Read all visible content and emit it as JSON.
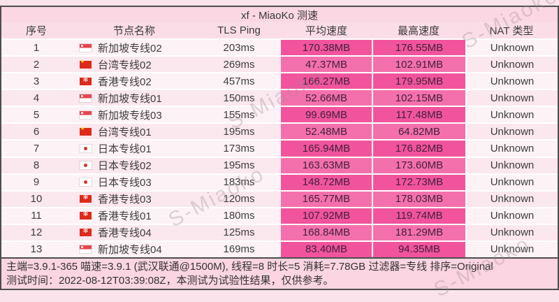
{
  "title": "xf - MiaoKo 测速",
  "watermark": "S-Miaoko",
  "columns": {
    "index": "序号",
    "name": "节点名称",
    "ping": "TLS Ping",
    "avg": "平均速度",
    "max": "最高速度",
    "nat": "NAT 类型"
  },
  "rows": [
    {
      "index": "1",
      "flag": "sg",
      "name": "新加坡专线02",
      "ping": "203ms",
      "avg": "170.38MB",
      "max": "176.55MB",
      "nat": "Unknown"
    },
    {
      "index": "2",
      "flag": "cn",
      "name": "台湾专线02",
      "ping": "269ms",
      "avg": "47.37MB",
      "max": "102.91MB",
      "nat": "Unknown"
    },
    {
      "index": "3",
      "flag": "hk",
      "name": "香港专线02",
      "ping": "457ms",
      "avg": "166.27MB",
      "max": "179.95MB",
      "nat": "Unknown"
    },
    {
      "index": "4",
      "flag": "sg",
      "name": "新加坡专线01",
      "ping": "150ms",
      "avg": "52.66MB",
      "max": "102.15MB",
      "nat": "Unknown"
    },
    {
      "index": "5",
      "flag": "sg",
      "name": "新加坡专线03",
      "ping": "155ms",
      "avg": "99.69MB",
      "max": "117.48MB",
      "nat": "Unknown"
    },
    {
      "index": "6",
      "flag": "cn",
      "name": "台湾专线01",
      "ping": "195ms",
      "avg": "52.48MB",
      "max": "64.82MB",
      "nat": "Unknown"
    },
    {
      "index": "7",
      "flag": "jp",
      "name": "日本专线01",
      "ping": "173ms",
      "avg": "165.94MB",
      "max": "176.82MB",
      "nat": "Unknown"
    },
    {
      "index": "8",
      "flag": "jp",
      "name": "日本专线02",
      "ping": "195ms",
      "avg": "163.63MB",
      "max": "173.60MB",
      "nat": "Unknown"
    },
    {
      "index": "9",
      "flag": "jp",
      "name": "日本专线03",
      "ping": "183ms",
      "avg": "148.72MB",
      "max": "172.73MB",
      "nat": "Unknown"
    },
    {
      "index": "10",
      "flag": "hk",
      "name": "香港专线03",
      "ping": "120ms",
      "avg": "165.77MB",
      "max": "178.03MB",
      "nat": "Unknown"
    },
    {
      "index": "11",
      "flag": "hk",
      "name": "香港专线01",
      "ping": "180ms",
      "avg": "107.92MB",
      "max": "119.74MB",
      "nat": "Unknown"
    },
    {
      "index": "12",
      "flag": "hk",
      "name": "香港专线04",
      "ping": "125ms",
      "avg": "168.84MB",
      "max": "181.29MB",
      "nat": "Unknown"
    },
    {
      "index": "13",
      "flag": "sg",
      "name": "新加坡专线04",
      "ping": "169ms",
      "avg": "83.40MB",
      "max": "94.35MB",
      "nat": "Unknown"
    }
  ],
  "footer": {
    "line1": "主端=3.9.1-365 喵速=3.9.1 (武汉联通@1500M), 线程=8 时长=5 消耗=7.78GB 过滤器=专线 排序=Original",
    "line2": "测试时间：2022-08-12T03:39:08Z，本测试为试验性结果，仅供参考。"
  },
  "colors": {
    "page_bg": "#fbe3ec",
    "title_bg": "#fbd7e3",
    "header_bg": "#fbdde8",
    "row_light_odd": "#fdf2f6",
    "row_light_even": "#fbe7ee",
    "speed_odd": "#f1549d",
    "speed_even": "#f470ad",
    "speed_text": "#43203a",
    "footer_bg": "#fbd5e1",
    "border": "#4d4d4d"
  }
}
